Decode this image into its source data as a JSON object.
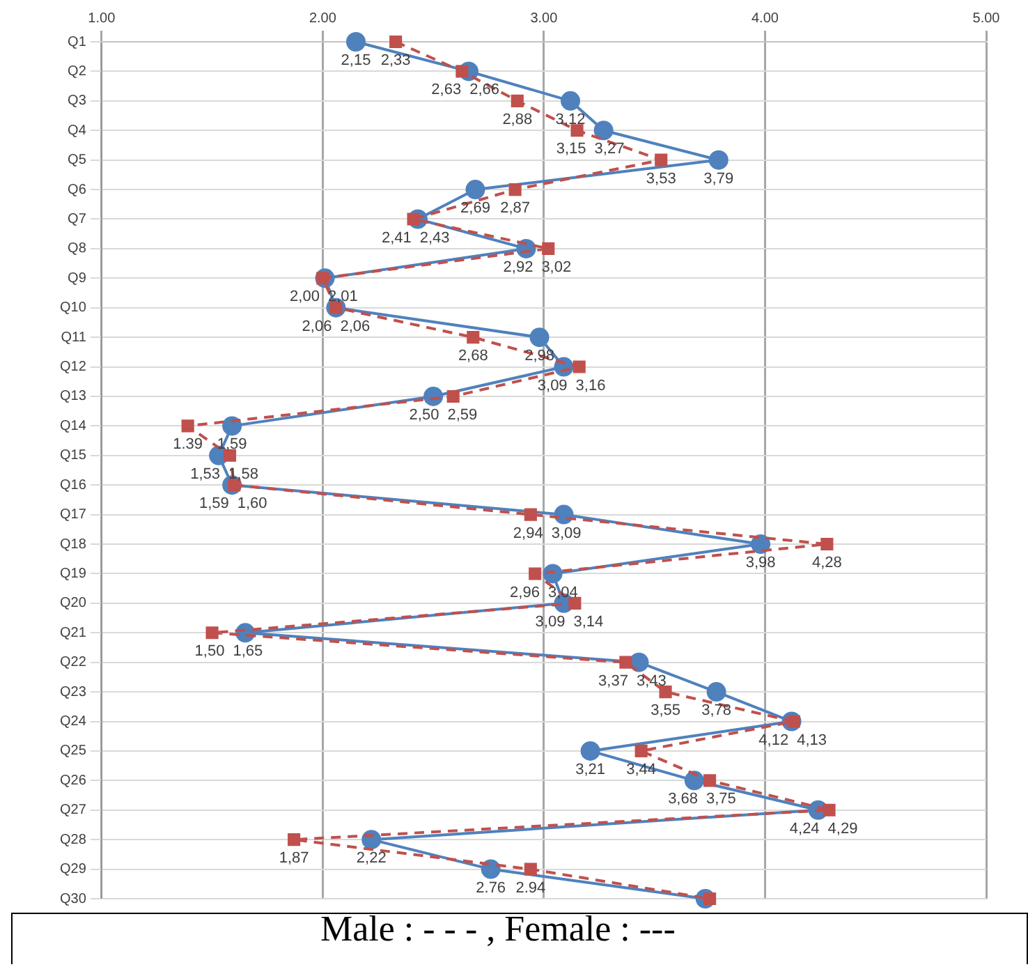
{
  "chart_data": {
    "type": "line",
    "orientation": "horizontal",
    "annotations": [
      "Male : - - - , Female : ---"
    ],
    "categories": [
      "Q1",
      "Q2",
      "Q3",
      "Q4",
      "Q5",
      "Q6",
      "Q7",
      "Q8",
      "Q9",
      "Q10",
      "Q11",
      "Q12",
      "Q13",
      "Q14",
      "Q15",
      "Q16",
      "Q17",
      "Q18",
      "Q19",
      "Q20",
      "Q21",
      "Q22",
      "Q23",
      "Q24",
      "Q25",
      "Q26",
      "Q27",
      "Q28",
      "Q29",
      "Q30"
    ],
    "xlim": [
      1,
      5
    ],
    "xticks": [
      {
        "value": 1,
        "label": "1.00"
      },
      {
        "value": 2,
        "label": "2.00"
      },
      {
        "value": 3,
        "label": "3.00"
      },
      {
        "value": 4,
        "label": "4.00"
      },
      {
        "value": 5,
        "label": "5.00"
      }
    ],
    "grid": true,
    "legend": false,
    "series": [
      {
        "color": "#c0504d",
        "marker": "square",
        "line_style": "dashed",
        "values": [
          2.33,
          2.63,
          2.88,
          3.15,
          3.53,
          2.87,
          2.41,
          3.02,
          2.0,
          2.06,
          2.68,
          3.16,
          2.59,
          1.39,
          1.58,
          1.6,
          2.94,
          4.28,
          2.96,
          3.14,
          1.5,
          3.37,
          3.55,
          4.13,
          3.44,
          3.75,
          4.29,
          1.87,
          2.94,
          3.75
        ],
        "value_labels": [
          "2,33",
          "2,63",
          "2,88",
          "3,15",
          "3,53",
          "2,87",
          "2,41",
          "3,02",
          "2,00",
          "2,06",
          "2,68",
          "3,16",
          "2,59",
          "1.39",
          "1,58",
          "1,60",
          "2,94",
          "4,28",
          "2,96",
          "3,14",
          "1,50",
          "3,37",
          "3,55",
          "4,13",
          "3,44",
          "3,75",
          "4,29",
          "1,87",
          "2.94",
          null
        ]
      },
      {
        "color": "#4f81bd",
        "marker": "circle",
        "line_style": "solid",
        "values": [
          2.15,
          2.66,
          3.12,
          3.27,
          3.79,
          2.69,
          2.43,
          2.92,
          2.01,
          2.06,
          2.98,
          3.09,
          2.5,
          1.59,
          1.53,
          1.59,
          3.09,
          3.98,
          3.04,
          3.09,
          1.65,
          3.43,
          3.78,
          4.12,
          3.21,
          3.68,
          4.24,
          2.22,
          2.76,
          3.73
        ],
        "value_labels": [
          "2,15",
          "2,66",
          "3,12",
          "3,27",
          "3,79",
          "2,69",
          "2,43",
          "2,92",
          "2,01",
          "2,06",
          "2,98",
          "3,09",
          "2,50",
          "1,59",
          "1,53",
          "1,59",
          "3,09",
          "3,98",
          "3,04",
          "3,09",
          "1,65",
          "3,43",
          "3,78",
          "4,12",
          "3,21",
          "3,68",
          "4,24",
          "2,22",
          "2.76",
          null
        ]
      }
    ]
  }
}
